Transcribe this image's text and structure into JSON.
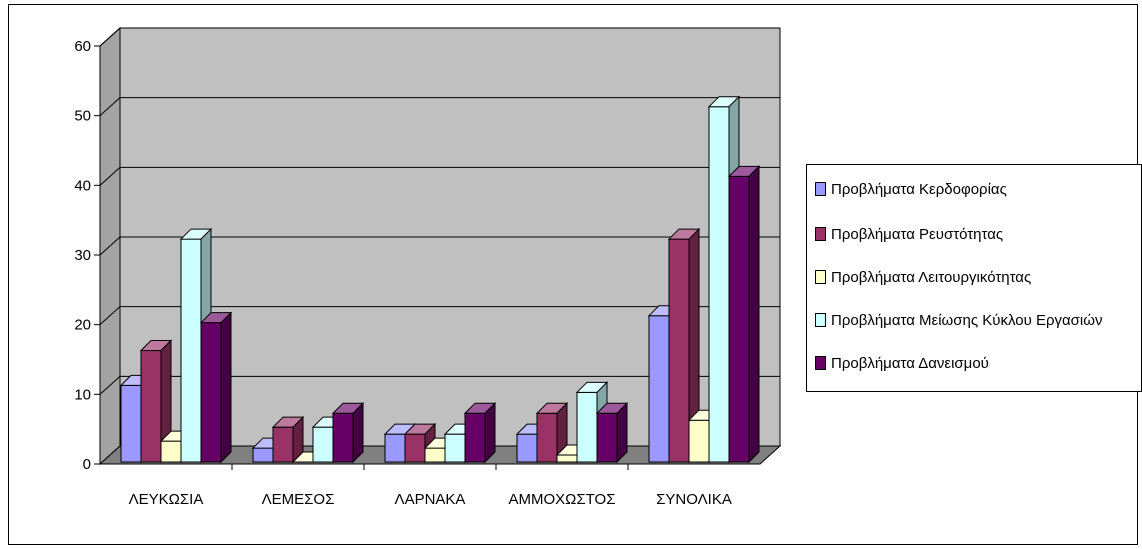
{
  "chart_data": {
    "type": "bar",
    "categories": [
      "ΛΕΥΚΩΣΙΑ",
      "ΛΕΜΕΣΟΣ",
      "ΛΑΡΝΑΚΑ",
      "ΑΜΜΟΧΩΣΤΟΣ",
      "ΣΥΝΟΛΙΚΑ"
    ],
    "series": [
      {
        "name": "Προβλήματα Κερδοφορίας",
        "color": "#9999ff",
        "values": [
          11,
          2,
          4,
          4,
          21
        ]
      },
      {
        "name": "Προβλήματα Ρευστότητας",
        "color": "#993366",
        "values": [
          16,
          5,
          4,
          7,
          32
        ]
      },
      {
        "name": "Προβλήματα Λειτουργικότητας",
        "color": "#ffffcc",
        "values": [
          3,
          0,
          2,
          1,
          6
        ]
      },
      {
        "name": "Προβλήματα Μείωσης Κύκλου Εργασιών",
        "color": "#ccffff",
        "values": [
          32,
          5,
          4,
          10,
          51
        ]
      },
      {
        "name": "Προβλήματα Δανεισμού",
        "color": "#660066",
        "values": [
          20,
          7,
          7,
          7,
          41
        ]
      }
    ],
    "yticks": [
      "0",
      "10",
      "20",
      "30",
      "40",
      "50",
      "60"
    ],
    "ylim": [
      0,
      60
    ],
    "grid": true,
    "legend_position": "right",
    "wall_color": "#c0c0c0",
    "floor_color": "#808080"
  }
}
